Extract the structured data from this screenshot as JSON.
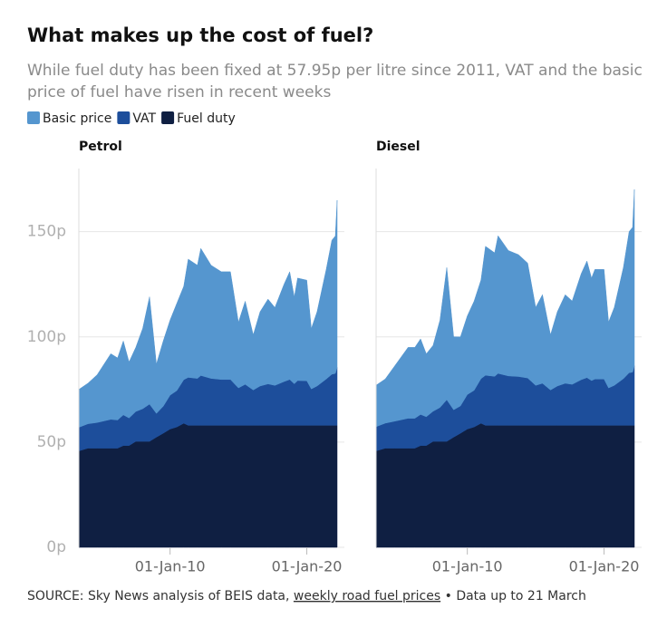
{
  "header": {
    "title": "What makes up the cost of fuel?",
    "subtitle": [
      "While fuel duty has been fixed at 57.95p per litre since 2011, VAT and the basic",
      "price of fuel have risen in recent weeks"
    ]
  },
  "source": {
    "text": "SOURCE: Sky News analysis of BEIS data,",
    "link": "weekly road fuel prices",
    "tail": "• Data up to 21 March"
  },
  "chart_data": [
    {
      "type": "stacked-area",
      "title": "Petrol",
      "x": [
        "2003-05-01",
        "2004-01-01",
        "2004-09-01",
        "2005-09-01",
        "2006-03-01",
        "2006-08-01",
        "2007-01-01",
        "2007-07-01",
        "2008-01-01",
        "2008-07-01",
        "2009-01-01",
        "2009-07-01",
        "2010-01-01",
        "2010-07-01",
        "2011-01-01",
        "2011-05-01",
        "2012-01-01",
        "2012-04-01",
        "2013-01-01",
        "2013-10-01",
        "2014-06-01",
        "2015-01-01",
        "2015-07-01",
        "2016-02-01",
        "2016-08-01",
        "2017-03-01",
        "2017-09-01",
        "2018-05-01",
        "2018-10-01",
        "2019-02-01",
        "2019-05-01",
        "2020-01-01",
        "2020-05-01",
        "2020-10-01",
        "2021-06-01",
        "2021-11-01",
        "2022-02-01",
        "2022-03-21"
      ],
      "series": [
        {
          "name": "Fuel duty",
          "color": "#0f1f42",
          "values": [
            45.82,
            47.1,
            47.1,
            47.1,
            47.1,
            48.35,
            48.35,
            50.35,
            50.35,
            50.35,
            52.35,
            54.19,
            56.19,
            57.19,
            58.95,
            57.95,
            57.95,
            57.95,
            57.95,
            57.95,
            57.95,
            57.95,
            57.95,
            57.95,
            57.95,
            57.95,
            57.95,
            57.95,
            57.95,
            57.95,
            57.95,
            57.95,
            57.95,
            57.95,
            57.95,
            57.95,
            57.95,
            57.95
          ]
        },
        {
          "name": "VAT",
          "color": "#1d4e9b",
          "values": [
            11.2,
            11.6,
            12.2,
            13.7,
            13.4,
            14.6,
            13.1,
            14.2,
            15.5,
            17.7,
            11.3,
            12.8,
            16.1,
            17.3,
            20.7,
            22.8,
            22.3,
            23.7,
            22.3,
            21.8,
            21.8,
            17.8,
            19.5,
            16.8,
            18.7,
            19.7,
            19.0,
            20.8,
            21.8,
            19.8,
            21.3,
            21.2,
            17.3,
            18.7,
            22.0,
            24.3,
            24.7,
            27.5
          ]
        },
        {
          "name": "Basic price",
          "color": "#5596cf",
          "values": [
            18.0,
            19.3,
            22.7,
            31.2,
            29.5,
            35.1,
            26.6,
            30.5,
            38.2,
            51.0,
            23.4,
            31.0,
            35.7,
            41.5,
            44.4,
            56.2,
            53.8,
            60.4,
            53.8,
            51.2,
            51.2,
            31.2,
            39.5,
            26.2,
            35.3,
            40.3,
            37.0,
            46.2,
            51.2,
            41.2,
            48.7,
            47.8,
            28.7,
            35.3,
            52.0,
            63.7,
            65.3,
            79.5
          ]
        }
      ],
      "xlim": [
        "2003-05-01",
        "2022-03-21"
      ],
      "xticks": [
        {
          "value": "2010-01-01",
          "label": "01-Jan-10"
        },
        {
          "value": "2020-01-01",
          "label": "01-Jan-20"
        }
      ],
      "ylim": [
        0,
        180
      ],
      "yticks": [
        {
          "value": 0,
          "label": "0p"
        },
        {
          "value": 50,
          "label": "50p"
        },
        {
          "value": 100,
          "label": "100p"
        },
        {
          "value": 150,
          "label": "150p"
        }
      ],
      "grid": true
    },
    {
      "type": "stacked-area",
      "title": "Diesel",
      "x": [
        "2003-05-01",
        "2004-01-01",
        "2004-09-01",
        "2005-09-01",
        "2006-03-01",
        "2006-08-01",
        "2007-01-01",
        "2007-07-01",
        "2008-01-01",
        "2008-07-01",
        "2009-01-01",
        "2009-07-01",
        "2010-01-01",
        "2010-07-01",
        "2011-01-01",
        "2011-05-01",
        "2012-01-01",
        "2012-04-01",
        "2013-01-01",
        "2013-10-01",
        "2014-06-01",
        "2015-01-01",
        "2015-07-01",
        "2016-02-01",
        "2016-08-01",
        "2017-03-01",
        "2017-09-01",
        "2018-05-01",
        "2018-10-01",
        "2019-02-01",
        "2019-05-01",
        "2020-01-01",
        "2020-05-01",
        "2020-10-01",
        "2021-06-01",
        "2021-11-01",
        "2022-02-01",
        "2022-03-21"
      ],
      "series": [
        {
          "name": "Fuel duty",
          "color": "#0f1f42",
          "values": [
            45.82,
            47.1,
            47.1,
            47.1,
            47.1,
            48.35,
            48.35,
            50.35,
            50.35,
            50.35,
            52.35,
            54.19,
            56.19,
            57.19,
            58.95,
            57.95,
            57.95,
            57.95,
            57.95,
            57.95,
            57.95,
            57.95,
            57.95,
            57.95,
            57.95,
            57.95,
            57.95,
            57.95,
            57.95,
            57.95,
            57.95,
            57.95,
            57.95,
            57.95,
            57.95,
            57.95,
            57.95,
            57.95
          ]
        },
        {
          "name": "VAT",
          "color": "#1d4e9b",
          "values": [
            11.5,
            11.9,
            12.8,
            14.2,
            14.2,
            14.8,
            13.7,
            14.3,
            16.1,
            19.8,
            13.0,
            13.0,
            16.4,
            17.4,
            21.2,
            23.8,
            23.3,
            24.7,
            23.5,
            23.2,
            22.5,
            19.0,
            20.0,
            16.8,
            18.7,
            20.0,
            19.5,
            21.7,
            22.7,
            21.3,
            22.0,
            22.0,
            17.8,
            19.0,
            22.2,
            25.0,
            25.3,
            28.3
          ]
        },
        {
          "name": "Basic price",
          "color": "#5596cf",
          "values": [
            19.7,
            21.0,
            26.1,
            33.7,
            33.7,
            35.9,
            29.9,
            31.3,
            41.5,
            62.8,
            34.7,
            32.8,
            37.4,
            42.4,
            46.9,
            61.3,
            58.7,
            65.4,
            59.6,
            57.9,
            54.6,
            37.1,
            42.1,
            26.2,
            35.3,
            42.1,
            39.6,
            50.4,
            55.4,
            48.7,
            52.1,
            52.1,
            31.3,
            37.1,
            52.9,
            67.1,
            68.8,
            83.8
          ]
        }
      ],
      "xlim": [
        "2003-05-01",
        "2022-03-21"
      ],
      "xticks": [
        {
          "value": "2010-01-01",
          "label": "01-Jan-10"
        },
        {
          "value": "2020-01-01",
          "label": "01-Jan-20"
        }
      ],
      "ylim": [
        0,
        180
      ],
      "yticks": [
        0,
        50,
        100,
        150
      ],
      "grid": true
    }
  ]
}
